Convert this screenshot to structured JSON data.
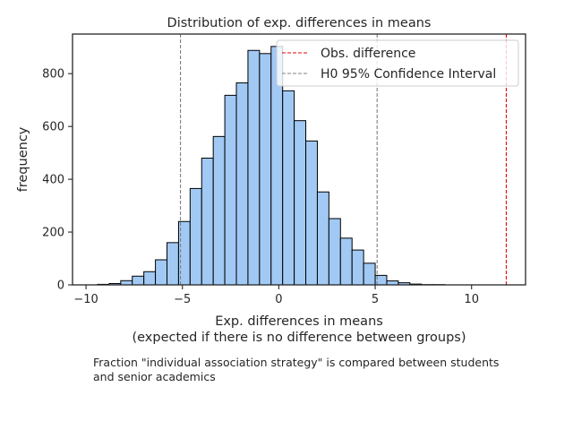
{
  "chart_data": {
    "type": "bar",
    "title": "Distribution of exp. differences in means",
    "xlabel_line1": "Exp. differences in means",
    "xlabel_line2": "(expected if there is no difference between groups)",
    "ylabel": "frequency",
    "xlim": [
      -10.7,
      12.8
    ],
    "ylim": [
      0,
      950
    ],
    "xticks": [
      -10,
      -5,
      0,
      5,
      10
    ],
    "xtick_labels": [
      "−10",
      "−5",
      "0",
      "5",
      "10"
    ],
    "yticks": [
      0,
      200,
      400,
      600,
      800
    ],
    "bin_edges": [
      -9.4,
      -8.8,
      -8.2,
      -7.6,
      -7.0,
      -6.4,
      -5.8,
      -5.2,
      -4.6,
      -4.0,
      -3.4,
      -2.8,
      -2.2,
      -1.6,
      -1.0,
      -0.4,
      0.2,
      0.8,
      1.4,
      2.0,
      2.6,
      3.2,
      3.8,
      4.4,
      5.0,
      5.6,
      6.2,
      6.8,
      7.4,
      8.0,
      8.6,
      9.2
    ],
    "counts": [
      2,
      5,
      16,
      33,
      50,
      95,
      160,
      240,
      365,
      480,
      562,
      718,
      765,
      888,
      876,
      903,
      735,
      622,
      545,
      352,
      251,
      177,
      132,
      82,
      36,
      15,
      8,
      3,
      1,
      1,
      0
    ],
    "bar_color": "#a1c9f4",
    "observed_difference": 11.8,
    "observed_color": "#e8000b",
    "ci": [
      -5.1,
      5.1
    ],
    "ci_color": "#808080",
    "legend": {
      "placement": "upper right",
      "entries": [
        "Obs. difference",
        "H0 95% Confidence Interval"
      ]
    },
    "caption": [
      "Fraction \"individual association strategy\" is compared between students",
      "and senior academics"
    ]
  }
}
